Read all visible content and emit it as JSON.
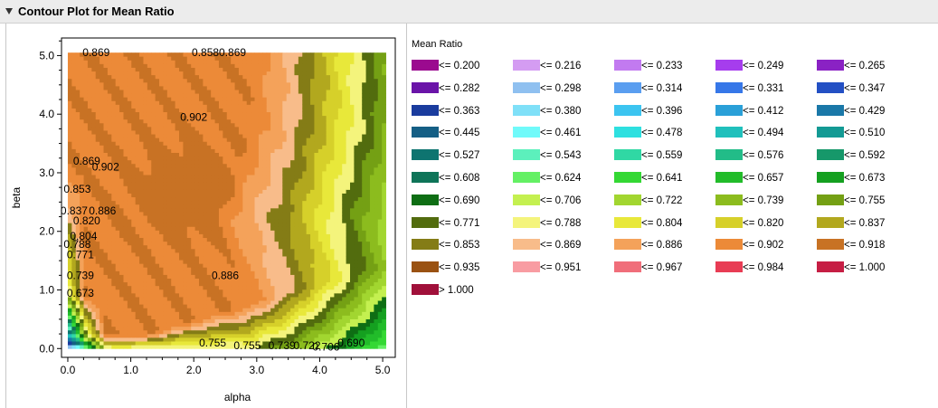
{
  "window": {
    "title": "Contour Plot for Mean Ratio"
  },
  "chart_data": {
    "type": "heatmap",
    "title": "",
    "xlabel": "alpha",
    "ylabel": "beta",
    "xlim": [
      -0.1,
      5.2
    ],
    "ylim": [
      -0.15,
      5.3
    ],
    "xticks": [
      "0.0",
      "1.0",
      "2.0",
      "3.0",
      "4.0",
      "5.0"
    ],
    "yticks": [
      "0.0",
      "1.0",
      "2.0",
      "3.0",
      "4.0",
      "5.0"
    ],
    "contour_labels": [
      {
        "text": "0.869",
        "x": 0.45,
        "y": 5.05
      },
      {
        "text": "0.8580.869",
        "x": 2.4,
        "y": 5.05
      },
      {
        "text": "0.902",
        "x": 2.0,
        "y": 3.95
      },
      {
        "text": "0.869",
        "x": 0.3,
        "y": 3.2
      },
      {
        "text": "0.902",
        "x": 0.6,
        "y": 3.1
      },
      {
        "text": "0.853",
        "x": 0.15,
        "y": 2.72
      },
      {
        "text": "0.837",
        "x": 0.1,
        "y": 2.35
      },
      {
        "text": "0.886",
        "x": 0.55,
        "y": 2.35
      },
      {
        "text": "0.820",
        "x": 0.3,
        "y": 2.18
      },
      {
        "text": "0.804",
        "x": 0.25,
        "y": 1.92
      },
      {
        "text": "0.788",
        "x": 0.15,
        "y": 1.78
      },
      {
        "text": "0.771",
        "x": 0.2,
        "y": 1.6
      },
      {
        "text": "0.739",
        "x": 0.2,
        "y": 1.25
      },
      {
        "text": "0.886",
        "x": 2.5,
        "y": 1.25
      },
      {
        "text": "0.673",
        "x": 0.2,
        "y": 0.95
      },
      {
        "text": "0.755",
        "x": 2.3,
        "y": 0.1
      },
      {
        "text": "0.755",
        "x": 2.85,
        "y": 0.05
      },
      {
        "text": "0.739",
        "x": 3.4,
        "y": 0.05
      },
      {
        "text": "0.722",
        "x": 3.8,
        "y": 0.05
      },
      {
        "text": "0.706",
        "x": 4.1,
        "y": 0.03
      },
      {
        "text": "0.690",
        "x": 4.5,
        "y": 0.1
      }
    ],
    "legend": {
      "title": "Mean Ratio",
      "placement": "right",
      "items": [
        {
          "label": "<= 0.200",
          "color": "#9b0a8f"
        },
        {
          "label": "<= 0.216",
          "color": "#d49cf2"
        },
        {
          "label": "<= 0.233",
          "color": "#c27af0"
        },
        {
          "label": "<= 0.249",
          "color": "#a63ded"
        },
        {
          "label": "<= 0.265",
          "color": "#8a22c4"
        },
        {
          "label": "<= 0.282",
          "color": "#6a14a8"
        },
        {
          "label": "<= 0.298",
          "color": "#8fc0f0"
        },
        {
          "label": "<= 0.314",
          "color": "#5a9ef0"
        },
        {
          "label": "<= 0.331",
          "color": "#3677e8"
        },
        {
          "label": "<= 0.347",
          "color": "#2350c4"
        },
        {
          "label": "<= 0.363",
          "color": "#1a3c9e"
        },
        {
          "label": "<= 0.380",
          "color": "#7fe0f8"
        },
        {
          "label": "<= 0.396",
          "color": "#3cc4f0"
        },
        {
          "label": "<= 0.412",
          "color": "#2aa0d8"
        },
        {
          "label": "<= 0.429",
          "color": "#1a78a8"
        },
        {
          "label": "<= 0.445",
          "color": "#155f85"
        },
        {
          "label": "<= 0.461",
          "color": "#70fafa"
        },
        {
          "label": "<= 0.478",
          "color": "#2ee0e0"
        },
        {
          "label": "<= 0.494",
          "color": "#20c0bc"
        },
        {
          "label": "<= 0.510",
          "color": "#139a94"
        },
        {
          "label": "<= 0.527",
          "color": "#0e7470"
        },
        {
          "label": "<= 0.543",
          "color": "#5cf0bc"
        },
        {
          "label": "<= 0.559",
          "color": "#30d8a4"
        },
        {
          "label": "<= 0.576",
          "color": "#22bc88"
        },
        {
          "label": "<= 0.592",
          "color": "#16986a"
        },
        {
          "label": "<= 0.608",
          "color": "#0e7458"
        },
        {
          "label": "<= 0.624",
          "color": "#64f064"
        },
        {
          "label": "<= 0.641",
          "color": "#34d834"
        },
        {
          "label": "<= 0.657",
          "color": "#22bc2a"
        },
        {
          "label": "<= 0.673",
          "color": "#15a020"
        },
        {
          "label": "<= 0.690",
          "color": "#0e6e14"
        },
        {
          "label": "<= 0.706",
          "color": "#c4f050"
        },
        {
          "label": "<= 0.722",
          "color": "#a2d630"
        },
        {
          "label": "<= 0.739",
          "color": "#8cbc1e"
        },
        {
          "label": "<= 0.755",
          "color": "#74a014"
        },
        {
          "label": "<= 0.771",
          "color": "#526c0e"
        },
        {
          "label": "<= 0.788",
          "color": "#f4f47c"
        },
        {
          "label": "<= 0.804",
          "color": "#e8e83a"
        },
        {
          "label": "<= 0.820",
          "color": "#d6d02a"
        },
        {
          "label": "<= 0.837",
          "color": "#b2a81e"
        },
        {
          "label": "<= 0.853",
          "color": "#847c16"
        },
        {
          "label": "<= 0.869",
          "color": "#f8bc8a"
        },
        {
          "label": "<= 0.886",
          "color": "#f4a25a"
        },
        {
          "label": "<= 0.902",
          "color": "#ec8a38"
        },
        {
          "label": "<= 0.918",
          "color": "#c87224"
        },
        {
          "label": "<= 0.935",
          "color": "#9a5212"
        },
        {
          "label": "<= 0.951",
          "color": "#f89ca2"
        },
        {
          "label": "<= 0.967",
          "color": "#f06e7a"
        },
        {
          "label": "<= 0.984",
          "color": "#e83c54"
        },
        {
          "label": "<= 1.000",
          "color": "#c61e44"
        },
        {
          "label": "> 1.000",
          "color": "#a0103a"
        }
      ]
    }
  }
}
